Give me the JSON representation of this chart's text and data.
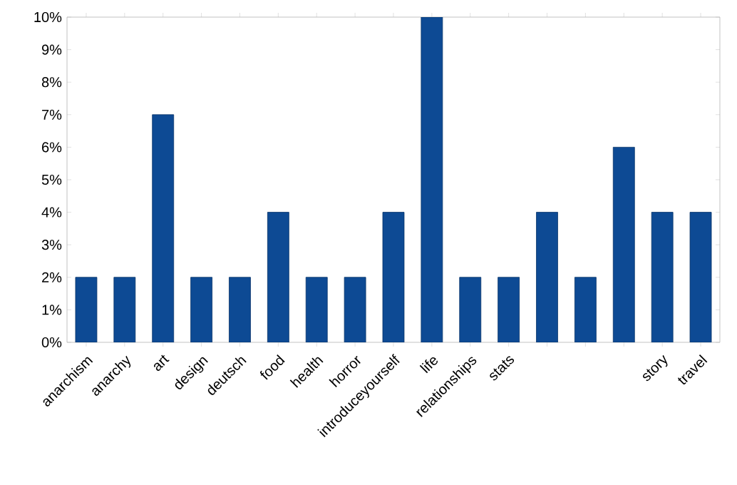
{
  "chart_data": {
    "type": "bar",
    "categories": [
      "anarchism",
      "anarchy",
      "art",
      "design",
      "deutsch",
      "food",
      "health",
      "horror",
      "introduceyourself",
      "life",
      "relationships",
      "stats",
      null,
      null,
      null,
      "story",
      "travel"
    ],
    "values": [
      2,
      2,
      7,
      2,
      2,
      4,
      2,
      2,
      4,
      10,
      2,
      2,
      4,
      2,
      6,
      4,
      4
    ],
    "color": "#0d4a94",
    "ylim": [
      0,
      10
    ],
    "yticks": [
      {
        "value": 0,
        "label": "0%"
      },
      {
        "value": 1,
        "label": "1%"
      },
      {
        "value": 2,
        "label": "2%"
      },
      {
        "value": 3,
        "label": "3%"
      },
      {
        "value": 4,
        "label": "4%"
      },
      {
        "value": 5,
        "label": "5%"
      },
      {
        "value": 6,
        "label": "6%"
      },
      {
        "value": 7,
        "label": "7%"
      },
      {
        "value": 8,
        "label": "8%"
      },
      {
        "value": 9,
        "label": "9%"
      },
      {
        "value": 10,
        "label": "10%"
      }
    ],
    "grid": false
  }
}
